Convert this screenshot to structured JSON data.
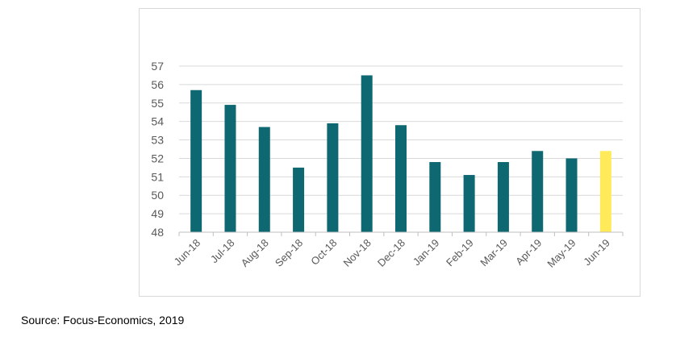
{
  "chart_data": {
    "type": "bar",
    "title": "",
    "xlabel": "",
    "ylabel": "",
    "categories": [
      "Jun-18",
      "Jul-18",
      "Aug-18",
      "Sep-18",
      "Oct-18",
      "Nov-18",
      "Dec-18",
      "Jan-19",
      "Feb-19",
      "Mar-19",
      "Apr-19",
      "May-19",
      "Jun-19"
    ],
    "values": [
      55.7,
      54.9,
      53.7,
      51.5,
      53.9,
      56.5,
      53.8,
      51.8,
      51.1,
      51.8,
      52.4,
      52.0,
      52.4
    ],
    "highlight_index": 12,
    "ylim": [
      48,
      57
    ],
    "yticks": [
      48,
      49,
      50,
      51,
      52,
      53,
      54,
      55,
      56,
      57
    ],
    "grid": true,
    "colors": {
      "bar": "#0e6872",
      "highlight": "#ffea5a",
      "grid": "#d9d9d9",
      "axis": "#bfbfbf",
      "text": "#595959"
    }
  },
  "footer": {
    "source": "Source: Focus-Economics, 2019"
  }
}
